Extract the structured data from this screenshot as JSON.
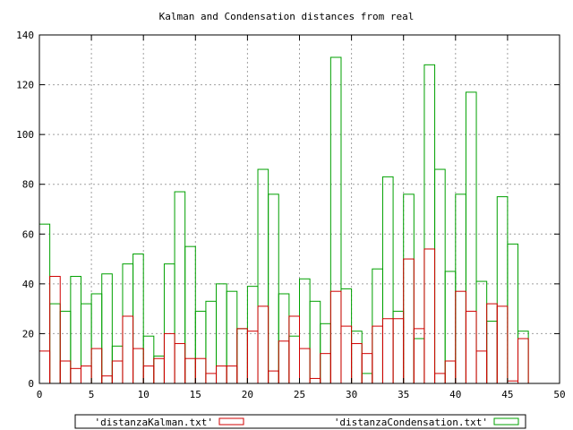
{
  "chart_data": {
    "type": "bar",
    "title": "Kalman and Condensation distances from real",
    "xlabel": "",
    "ylabel": "",
    "xlim": [
      0,
      50
    ],
    "ylim": [
      0,
      140
    ],
    "x_ticks": [
      0,
      5,
      10,
      15,
      20,
      25,
      30,
      35,
      40,
      45,
      50
    ],
    "y_ticks": [
      0,
      20,
      40,
      60,
      80,
      100,
      120,
      140
    ],
    "grid": true,
    "legend_position": "bottom",
    "series": [
      {
        "name": "'distanzaKalman.txt'",
        "color": "#d00000",
        "values": [
          13,
          43,
          9,
          6,
          7,
          14,
          3,
          9,
          27,
          14,
          7,
          10,
          20,
          16,
          10,
          10,
          4,
          7,
          7,
          22,
          21,
          31,
          5,
          17,
          27,
          14,
          2,
          12,
          37,
          23,
          16,
          12,
          23,
          26,
          26,
          50,
          22,
          54,
          4,
          9,
          37,
          29,
          13,
          32,
          31,
          1,
          18
        ]
      },
      {
        "name": "'distanzaCondensation.txt'",
        "color": "#00a000",
        "values": [
          64,
          32,
          29,
          43,
          32,
          36,
          44,
          15,
          48,
          52,
          19,
          11,
          48,
          77,
          55,
          29,
          33,
          40,
          37,
          22,
          39,
          86,
          76,
          36,
          19,
          42,
          33,
          24,
          131,
          38,
          21,
          4,
          46,
          83,
          29,
          76,
          18,
          128,
          86,
          45,
          76,
          117,
          41,
          25,
          75,
          56,
          21
        ]
      }
    ]
  }
}
